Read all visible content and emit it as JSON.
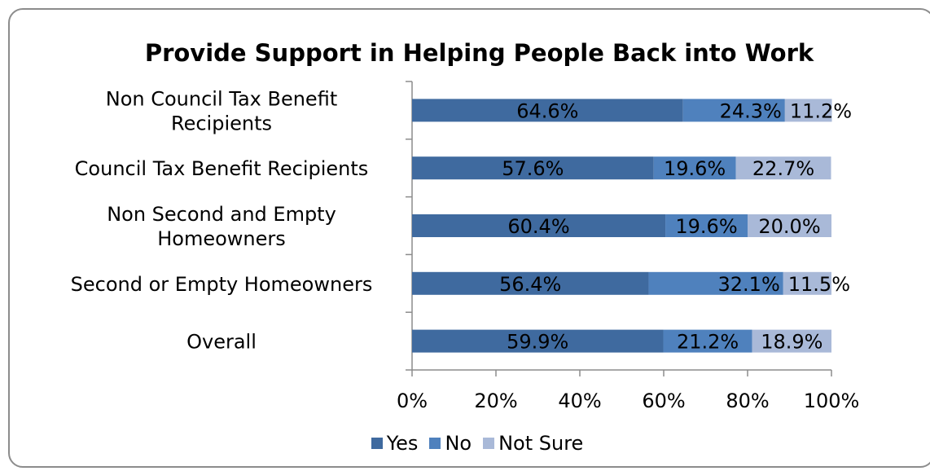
{
  "chart_data": {
    "type": "bar",
    "orientation": "horizontal",
    "stacked": true,
    "title": "Provide Support in Helping People Back into Work",
    "categories": [
      [
        "Non Council Tax Benefit",
        "Recipients"
      ],
      [
        "Council Tax Benefit Recipients"
      ],
      [
        "Non Second and Empty",
        "Homeowners"
      ],
      [
        "Second or Empty  Homeowners"
      ],
      [
        "Overall"
      ]
    ],
    "series": [
      {
        "name": "Yes",
        "color": "#3F6A9F",
        "values": [
          64.6,
          57.6,
          60.4,
          56.4,
          59.9
        ]
      },
      {
        "name": "No",
        "color": "#4F81BD",
        "values": [
          24.3,
          19.6,
          19.6,
          32.1,
          21.2
        ]
      },
      {
        "name": "Not Sure",
        "color": "#A9B9D8",
        "values": [
          11.2,
          22.7,
          20.0,
          11.5,
          18.9
        ]
      }
    ],
    "data_labels": [
      [
        "64.6%",
        "24.3%",
        "11.2%"
      ],
      [
        "57.6%",
        "19.6%",
        "22.7%"
      ],
      [
        "60.4%",
        "19.6%",
        "20.0%"
      ],
      [
        "56.4%",
        "32.1%",
        "11.5%"
      ],
      [
        "59.9%",
        "21.2%",
        "18.9%"
      ]
    ],
    "xlim": [
      0,
      100
    ],
    "x_ticks": [
      "0%",
      "20%",
      "40%",
      "60%",
      "80%",
      "100%"
    ],
    "grid": false,
    "legend_position": "bottom"
  }
}
